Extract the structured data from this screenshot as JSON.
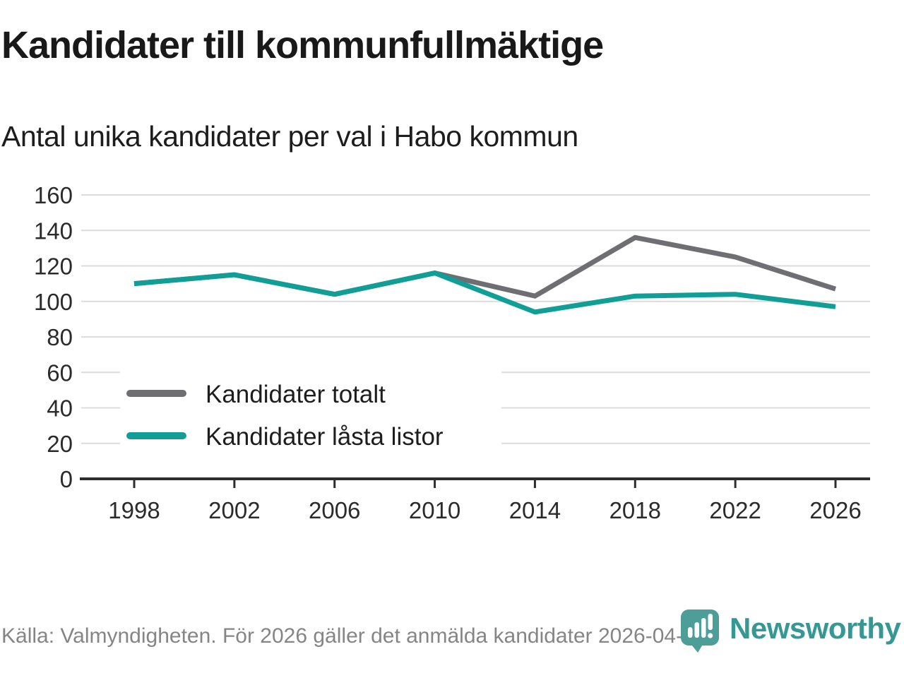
{
  "header": {
    "title": "Kandidater till kommunfullmäktige",
    "subtitle": "Antal unika kandidater per val i Habo kommun"
  },
  "chart_data": {
    "type": "line",
    "title": "Kandidater till kommunfullmäktige",
    "subtitle": "Antal unika kandidater per val i Habo kommun",
    "categories": [
      "1998",
      "2002",
      "2006",
      "2010",
      "2014",
      "2018",
      "2022",
      "2026"
    ],
    "series": [
      {
        "name": "Kandidater totalt",
        "color": "#6e6e73",
        "values": [
          110,
          115,
          104,
          116,
          103,
          136,
          125,
          107
        ]
      },
      {
        "name": "Kandidater låsta listor",
        "color": "#119e96",
        "values": [
          110,
          115,
          104,
          116,
          94,
          103,
          104,
          97
        ]
      }
    ],
    "xlabel": "",
    "ylabel": "",
    "ylim": [
      0,
      160
    ],
    "ytick_step": 20,
    "grid": "horizontal",
    "legend_position": "inside-bottom-left"
  },
  "footer": {
    "source": "Källa: Valmyndigheten. För 2026 gäller det anmälda kandidater 2026-04-10.",
    "brand": "Newsworthy"
  },
  "colors": {
    "series_total": "#6e6e73",
    "series_locked": "#119e96",
    "grid": "#dcdcdc",
    "axis": "#2e2e2e",
    "tick_label": "#2b2b2b",
    "legend_text": "#1d1d1d",
    "legend_bg": "#ffffff",
    "muted_text": "#858585",
    "brand_teal": "#4d9d98",
    "brand_text_teal": "#359892"
  }
}
